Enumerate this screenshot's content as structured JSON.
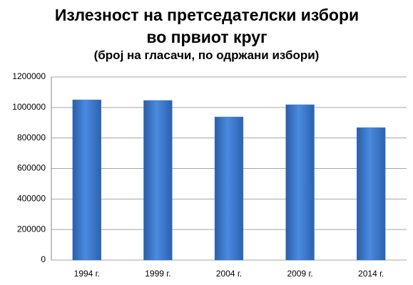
{
  "chart_data": {
    "type": "bar",
    "title": "Излезност на претседателски избори во првиот круг",
    "subtitle": "(број на гласачи, по одржани избори)",
    "categories": [
      "1994 г.",
      "1999 г.",
      "2004 г.",
      "2009 г.",
      "2014 г."
    ],
    "values": [
      1050000,
      1046000,
      938000,
      1018000,
      868000
    ],
    "color": "#3f79c9",
    "ylim": [
      0,
      1200000
    ],
    "yticks": [
      0,
      200000,
      400000,
      600000,
      800000,
      1000000,
      1200000
    ],
    "grid": true
  }
}
